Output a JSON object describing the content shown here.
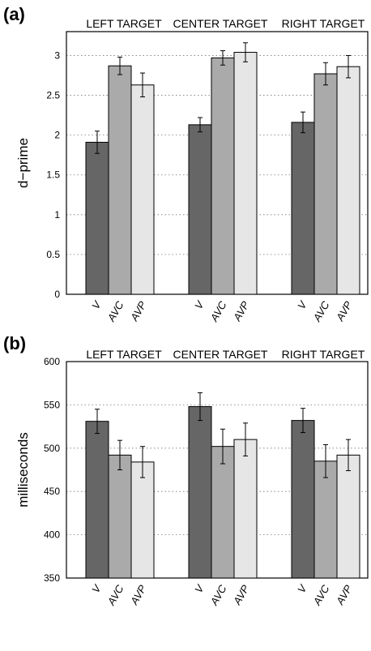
{
  "colors": {
    "V": "#666666",
    "AVC": "#aaaaaa",
    "AVP": "#e6e6e6"
  },
  "chart_data": [
    {
      "panel": "(a)",
      "type": "bar",
      "ylabel": "d−prime",
      "ylim": [
        0,
        3.3
      ],
      "yticks": [
        "0",
        "0.5",
        "1",
        "1.5",
        "2",
        "2.5",
        "3"
      ],
      "grid": "horizontal dotted",
      "groups": [
        "LEFT TARGET",
        "CENTER TARGET",
        "RIGHT TARGET"
      ],
      "categories": [
        "V",
        "AVC",
        "AVP"
      ],
      "series": [
        {
          "group": "LEFT TARGET",
          "values": [
            1.91,
            2.87,
            2.63
          ],
          "errors": [
            0.14,
            0.11,
            0.15
          ]
        },
        {
          "group": "CENTER TARGET",
          "values": [
            2.13,
            2.97,
            3.04
          ],
          "errors": [
            0.09,
            0.09,
            0.12
          ]
        },
        {
          "group": "RIGHT TARGET",
          "values": [
            2.16,
            2.77,
            2.86
          ],
          "errors": [
            0.13,
            0.14,
            0.14
          ]
        }
      ]
    },
    {
      "panel": "(b)",
      "type": "bar",
      "ylabel": "milliseconds",
      "ylim": [
        350,
        600
      ],
      "yticks": [
        "350",
        "400",
        "450",
        "500",
        "550",
        "600"
      ],
      "grid": "horizontal dotted",
      "groups": [
        "LEFT TARGET",
        "CENTER TARGET",
        "RIGHT TARGET"
      ],
      "categories": [
        "V",
        "AVC",
        "AVP"
      ],
      "series": [
        {
          "group": "LEFT TARGET",
          "values": [
            531,
            492,
            484
          ],
          "errors": [
            14,
            17,
            18
          ]
        },
        {
          "group": "CENTER TARGET",
          "values": [
            548,
            502,
            510
          ],
          "errors": [
            16,
            20,
            19
          ]
        },
        {
          "group": "RIGHT TARGET",
          "values": [
            532,
            485,
            492
          ],
          "errors": [
            14,
            19,
            18
          ]
        }
      ]
    }
  ]
}
